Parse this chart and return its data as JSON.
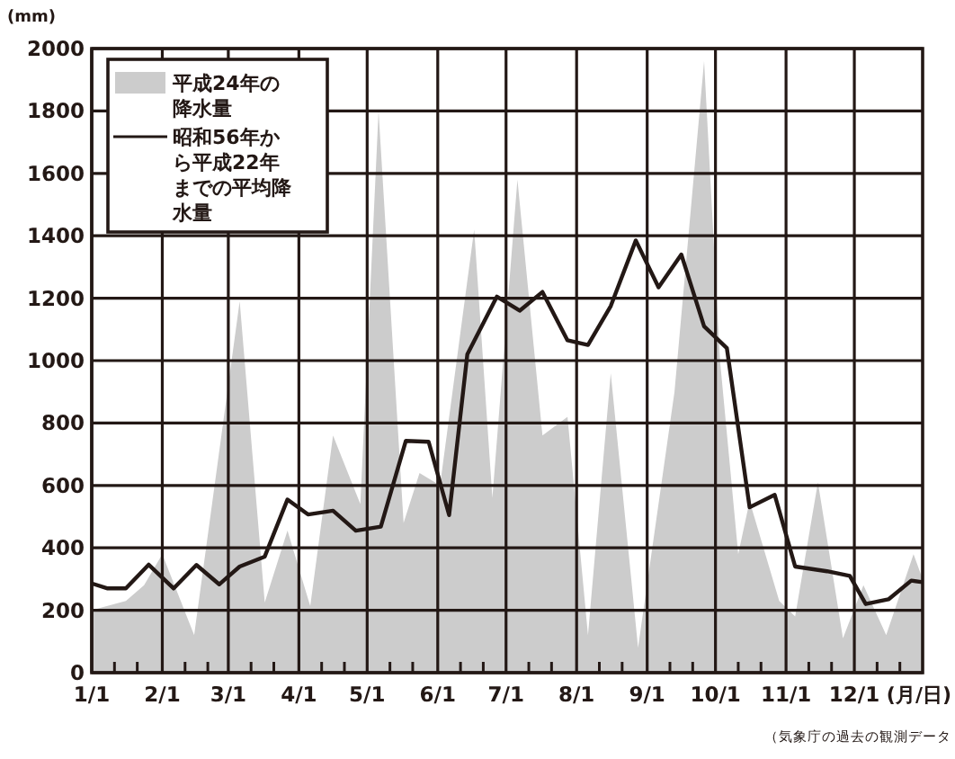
{
  "chart_data": {
    "type": "area",
    "ylabel": "(mm)",
    "xlabel": "(月/日)",
    "x": [
      "--01-01",
      "--01-16",
      "--01-24",
      "--02-01",
      "--02-15",
      "--03-06",
      "--03-17",
      "--03-27",
      "--04-06",
      "--04-16",
      "--04-28",
      "--05-06",
      "--05-17",
      "--05-24",
      "--06-02",
      "--06-17",
      "--06-25",
      "--07-06",
      "--07-17",
      "--07-28",
      "--08-06",
      "--08-16",
      "--08-28",
      "--09-13",
      "--09-26",
      "--10-03",
      "--10-11",
      "--10-16",
      "--10-29",
      "--11-05",
      "--11-15",
      "--11-26",
      "--12-05",
      "--12-15",
      "--12-27",
      "--12-31"
    ],
    "series": [
      {
        "name": "平成24年の降水量",
        "color": "#cccccc",
        "values": [
          200,
          230,
          280,
          380,
          120,
          1190,
          225,
          455,
          213,
          760,
          540,
          1800,
          480,
          640,
          600,
          1420,
          560,
          1580,
          760,
          820,
          120,
          960,
          80,
          900,
          1960,
          1000,
          380,
          550,
          230,
          180,
          610,
          110,
          280,
          120,
          380,
          300
        ]
      },
      {
        "name": "昭和56年から平成22年までの平均降水量",
        "type": "line",
        "color": "#231815",
        "x": [
          "--01-01",
          "--01-08",
          "--01-16",
          "--01-26",
          "--02-06",
          "--02-16",
          "--02-26",
          "--03-06",
          "--03-17",
          "--03-27",
          "--04-05",
          "--04-16",
          "--04-26",
          "--05-07",
          "--05-18",
          "--05-28",
          "--06-06",
          "--06-14",
          "--06-27",
          "--07-07",
          "--07-17",
          "--07-28",
          "--08-06",
          "--08-16",
          "--08-27",
          "--09-06",
          "--09-16",
          "--09-26",
          "--10-06",
          "--10-16",
          "--10-27",
          "--11-05",
          "--11-19",
          "--11-29",
          "--12-06",
          "--12-16",
          "--12-26",
          "--12-31"
        ],
        "values": [
          286,
          270,
          270,
          346,
          270,
          345,
          283,
          340,
          372,
          555,
          507,
          519,
          455,
          468,
          743,
          740,
          505,
          1020,
          1205,
          1160,
          1220,
          1065,
          1050,
          1175,
          1385,
          1235,
          1340,
          1110,
          1040,
          530,
          570,
          340,
          325,
          310,
          220,
          235,
          295,
          290
        ]
      }
    ],
    "xlim": [
      "--01-01",
      "--12-31"
    ],
    "xticks": [
      {
        "value": "--01-01",
        "label": "1/1"
      },
      {
        "value": "--01-11",
        "label": null
      },
      {
        "value": "--01-21",
        "label": null
      },
      {
        "value": "--02-01",
        "label": "2/1"
      },
      {
        "value": "--02-11",
        "label": null
      },
      {
        "value": "--02-21",
        "label": null
      },
      {
        "value": "--03-01",
        "label": "3/1"
      },
      {
        "value": "--03-11",
        "label": null
      },
      {
        "value": "--03-21",
        "label": null
      },
      {
        "value": "--04-01",
        "label": "4/1"
      },
      {
        "value": "--04-11",
        "label": null
      },
      {
        "value": "--04-21",
        "label": null
      },
      {
        "value": "--05-01",
        "label": "5/1"
      },
      {
        "value": "--05-11",
        "label": null
      },
      {
        "value": "--05-21",
        "label": null
      },
      {
        "value": "--06-01",
        "label": "6/1"
      },
      {
        "value": "--06-11",
        "label": null
      },
      {
        "value": "--06-21",
        "label": null
      },
      {
        "value": "--07-01",
        "label": "7/1"
      },
      {
        "value": "--07-11",
        "label": null
      },
      {
        "value": "--07-21",
        "label": null
      },
      {
        "value": "--08-01",
        "label": "8/1"
      },
      {
        "value": "--08-11",
        "label": null
      },
      {
        "value": "--08-21",
        "label": null
      },
      {
        "value": "--09-01",
        "label": "9/1"
      },
      {
        "value": "--09-11",
        "label": null
      },
      {
        "value": "--09-21",
        "label": null
      },
      {
        "value": "--10-01",
        "label": "10/1"
      },
      {
        "value": "--10-11",
        "label": null
      },
      {
        "value": "--10-21",
        "label": null
      },
      {
        "value": "--11-01",
        "label": "11/1"
      },
      {
        "value": "--11-11",
        "label": null
      },
      {
        "value": "--11-21",
        "label": null
      },
      {
        "value": "--12-01",
        "label": "12/1"
      },
      {
        "value": "--12-11",
        "label": null
      },
      {
        "value": "--12-21",
        "label": null
      }
    ],
    "ylim": [
      0,
      2000
    ],
    "yticks": [
      0,
      200,
      400,
      600,
      800,
      1000,
      1200,
      1400,
      1600,
      1800,
      2000
    ],
    "grid": true,
    "legend": "top left",
    "annotations": [
      "（気象庁の過去の観測データ"
    ]
  }
}
